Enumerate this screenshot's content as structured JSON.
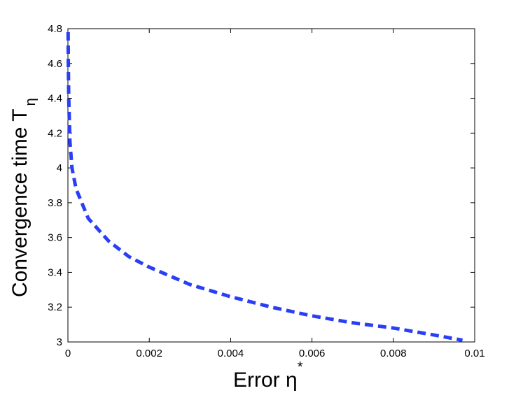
{
  "chart_data": {
    "type": "line",
    "xlabel": {
      "text": "Error η",
      "sup": "*"
    },
    "ylabel": {
      "text": "Convergence time  T",
      "sub": "η"
    },
    "x": [
      5e-06,
      1e-05,
      2e-05,
      5e-05,
      0.0001,
      0.0002,
      0.0005,
      0.001,
      0.0015,
      0.002,
      0.003,
      0.004,
      0.005,
      0.006,
      0.007,
      0.008,
      0.009,
      0.0097
    ],
    "series": [
      {
        "color": "#2a3ff5",
        "dashed": true,
        "values": [
          4.78,
          4.6,
          4.4,
          4.15,
          4.0,
          3.88,
          3.71,
          3.58,
          3.49,
          3.43,
          3.33,
          3.26,
          3.2,
          3.15,
          3.11,
          3.08,
          3.04,
          3.01
        ]
      }
    ],
    "xlim": [
      0,
      0.01
    ],
    "xticks": [
      0,
      0.002,
      0.004,
      0.006,
      0.008,
      0.01
    ],
    "ylim": [
      3,
      4.8
    ],
    "yticks": [
      3,
      3.2,
      3.4,
      3.6,
      3.8,
      4,
      4.2,
      4.4,
      4.6,
      4.8
    ],
    "grid": false
  }
}
